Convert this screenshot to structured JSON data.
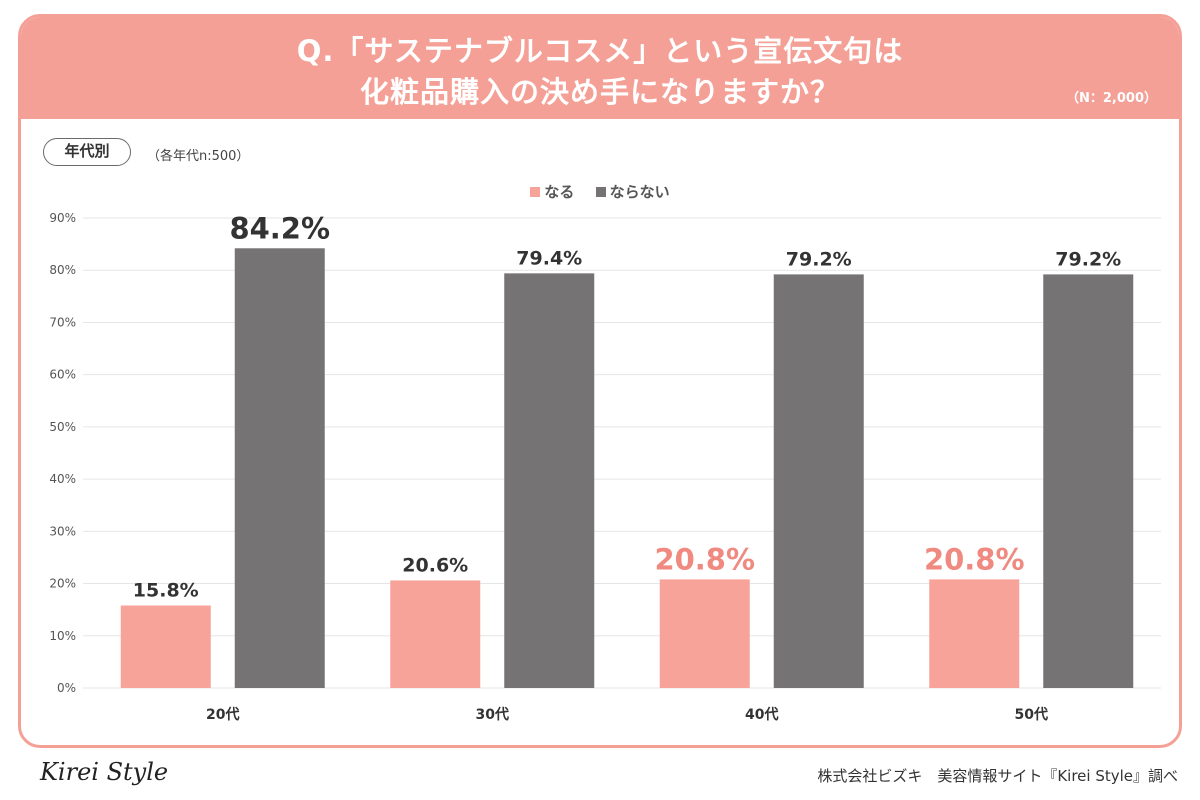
{
  "header": {
    "title_line1": "Q.「サステナブルコスメ」という宣伝文句は",
    "title_line2": "化粧品購入の決め手になりますか？",
    "sample": "（N：2,000）"
  },
  "tag": {
    "label": "年代別",
    "note": "（各年代n:500）"
  },
  "footer": {
    "logo": "Kirei Style",
    "credit": "株式会社ビズキ　美容情報サイト『Kirei Style』調べ"
  },
  "colors": {
    "header": "#f4a096",
    "naru": "#f8a39a",
    "naranai": "#767375",
    "highlight_text": "#f08a80"
  },
  "chart_data": {
    "type": "bar",
    "categories": [
      "20代",
      "30代",
      "40代",
      "50代"
    ],
    "series": [
      {
        "name": "なる",
        "values": [
          15.8,
          20.6,
          20.8,
          20.8
        ]
      },
      {
        "name": "ならない",
        "values": [
          84.2,
          79.4,
          79.2,
          79.2
        ]
      }
    ],
    "data_labels": [
      [
        "15.8%",
        "20.6%",
        "20.8%",
        "20.8%"
      ],
      [
        "84.2%",
        "79.4%",
        "79.2%",
        "79.2%"
      ]
    ],
    "emphasized": [
      [
        false,
        false,
        true,
        true
      ],
      [
        true,
        false,
        false,
        false
      ]
    ],
    "ylim": [
      0,
      90
    ],
    "yticks": [
      "0%",
      "10%",
      "20%",
      "30%",
      "40%",
      "50%",
      "60%",
      "70%",
      "80%",
      "90%"
    ],
    "xlabel": "",
    "ylabel": "",
    "legend_position": "top-center",
    "grid": true
  }
}
